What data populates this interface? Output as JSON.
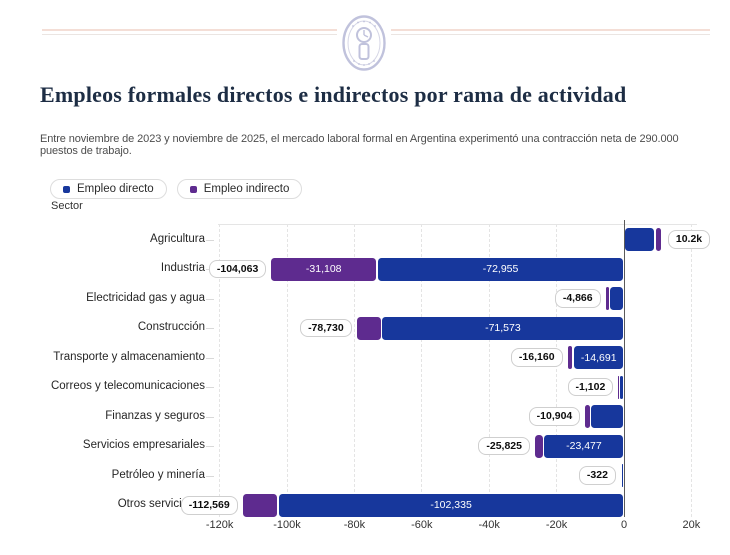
{
  "title": "Empleos formales directos e indirectos por rama de actividad",
  "subtitle": "Entre noviembre de 2023 y noviembre de 2025, el mercado laboral formal en Argentina experimentó una contracción neta de 290.000 puestos de trabajo.",
  "legend": {
    "items": [
      {
        "label": "Empleo directo",
        "color": "#17379c"
      },
      {
        "label": "Empleo indirecto",
        "color": "#5e2b8f"
      }
    ]
  },
  "sector_axis_label": "Sector",
  "chart_data": {
    "type": "bar",
    "orientation": "horizontal",
    "stacked": true,
    "title": "Empleos formales directos e indirectos por rama de actividad",
    "series_names": [
      "Empleo directo",
      "Empleo indirecto"
    ],
    "colors": {
      "direct": "#17379c",
      "indirect": "#5e2b8f"
    },
    "legend_position": "top-left",
    "grid": "vertical-dashed",
    "xlim": [
      -125000,
      25000
    ],
    "x_ticks": [
      {
        "label": "-120k",
        "value": -120000
      },
      {
        "label": "-100k",
        "value": -100000
      },
      {
        "label": "-80k",
        "value": -80000
      },
      {
        "label": "-60k",
        "value": -60000
      },
      {
        "label": "-40k",
        "value": -40000
      },
      {
        "label": "-20k",
        "value": -20000
      },
      {
        "label": "0",
        "value": 0
      },
      {
        "label": "20k",
        "value": 20000
      }
    ],
    "rows": [
      {
        "sector": "Agricultura",
        "direct": 8700,
        "indirect": 1500,
        "total_label": "10.2k",
        "direct_label": null,
        "indirect_label": null
      },
      {
        "sector": "Industria",
        "direct": -72955,
        "indirect": -31108,
        "total_label": "-104,063",
        "direct_label": "-72,955",
        "indirect_label": "-31,108"
      },
      {
        "sector": "Electricidad gas y agua",
        "direct": -4000,
        "indirect": -866,
        "total_label": "-4,866",
        "direct_label": null,
        "indirect_label": null
      },
      {
        "sector": "Construcción",
        "direct": -71573,
        "indirect": -7157,
        "total_label": "-78,730",
        "direct_label": "-71,573",
        "indirect_label": null
      },
      {
        "sector": "Transporte y almacenamiento",
        "direct": -14691,
        "indirect": -1469,
        "total_label": "-16,160",
        "direct_label": "-14,691",
        "indirect_label": null
      },
      {
        "sector": "Correos y telecomunicaciones",
        "direct": -1000,
        "indirect": -102,
        "total_label": "-1,102",
        "direct_label": null,
        "indirect_label": null
      },
      {
        "sector": "Finanzas y seguros",
        "direct": -9500,
        "indirect": -1404,
        "total_label": "-10,904",
        "direct_label": null,
        "indirect_label": null
      },
      {
        "sector": "Servicios empresariales",
        "direct": -23477,
        "indirect": -2348,
        "total_label": "-25,825",
        "direct_label": "-23,477",
        "indirect_label": null
      },
      {
        "sector": "Petróleo y minería",
        "direct": -300,
        "indirect": -22,
        "total_label": "-322",
        "direct_label": null,
        "indirect_label": null
      },
      {
        "sector": "Otros servici",
        "direct": -102335,
        "indirect": -10234,
        "total_label": "-112,569",
        "direct_label": "-102,335",
        "indirect_label": null
      }
    ]
  }
}
